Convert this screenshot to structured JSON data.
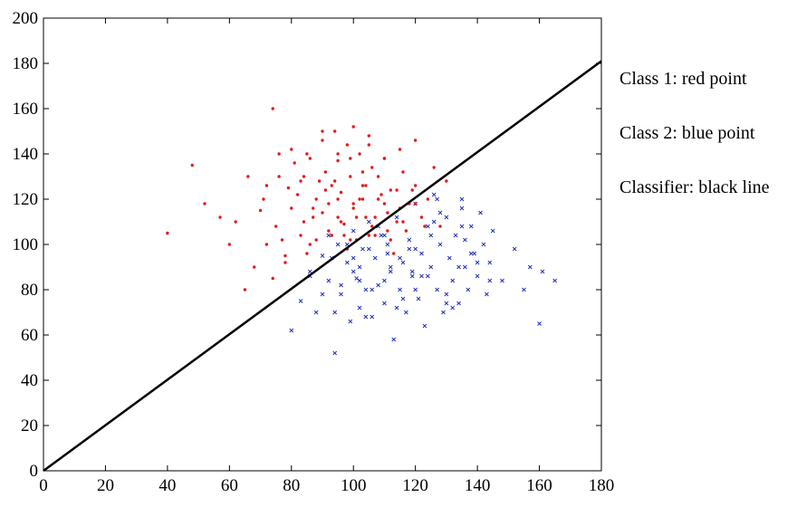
{
  "chart_data": {
    "type": "scatter",
    "xlim": [
      0,
      180
    ],
    "ylim": [
      0,
      200
    ],
    "x_ticks": [
      "0",
      "20",
      "40",
      "60",
      "80",
      "100",
      "120",
      "140",
      "160",
      "180"
    ],
    "y_ticks": [
      "0",
      "20",
      "40",
      "60",
      "80",
      "100",
      "120",
      "140",
      "160",
      "180",
      "200"
    ],
    "grid": false,
    "legend_position": "right",
    "annotations": [
      "Class 1: red point",
      "Class 2: blue point",
      "Classifier: black line"
    ],
    "series": [
      {
        "name": "Class 1",
        "color": "#e41a1c",
        "marker": "dot",
        "x": [
          40,
          48,
          52,
          57,
          60,
          65,
          70,
          74,
          76,
          79,
          80,
          83,
          84,
          86,
          88,
          90,
          91,
          92,
          93,
          94,
          95,
          96,
          97,
          98,
          99,
          100,
          101,
          102,
          103,
          104,
          105,
          106,
          108,
          110,
          112,
          114,
          116,
          118,
          120,
          122,
          124,
          126,
          128,
          130,
          72,
          75,
          78,
          82,
          85,
          87,
          89,
          92,
          95,
          98,
          101,
          104,
          107,
          110,
          113,
          116,
          119,
          68,
          72,
          77,
          81,
          86,
          90,
          94,
          97,
          100,
          103,
          106,
          109,
          112,
          115,
          62,
          66,
          71,
          76,
          80,
          84,
          88,
          93,
          96,
          99,
          102,
          105,
          108,
          111,
          114,
          117,
          120,
          123,
          74,
          78,
          83,
          87,
          91,
          95,
          99,
          103,
          107,
          111,
          85,
          90,
          95,
          100,
          105,
          110,
          115,
          120
        ],
        "y": [
          105,
          135,
          118,
          112,
          100,
          80,
          115,
          160,
          130,
          125,
          142,
          128,
          110,
          138,
          120,
          146,
          132,
          118,
          104,
          150,
          137,
          123,
          109,
          144,
          130,
          116,
          102,
          140,
          126,
          112,
          148,
          134,
          120,
          138,
          124,
          110,
          132,
          118,
          126,
          112,
          120,
          134,
          108,
          128,
          100,
          108,
          95,
          122,
          96,
          112,
          128,
          106,
          120,
          98,
          112,
          126,
          104,
          118,
          96,
          110,
          124,
          90,
          126,
          102,
          136,
          100,
          114,
          128,
          104,
          118,
          132,
          108,
          122,
          102,
          116,
          110,
          130,
          120,
          140,
          116,
          130,
          102,
          126,
          110,
          138,
          120,
          104,
          130,
          114,
          124,
          106,
          118,
          108,
          85,
          92,
          104,
          116,
          124,
          112,
          102,
          120,
          112,
          106,
          140,
          150,
          140,
          152,
          144,
          138,
          142,
          146
        ]
      },
      {
        "name": "Class 2",
        "color": "#2233bb",
        "marker": "x",
        "x": [
          80,
          83,
          86,
          88,
          90,
          92,
          94,
          95,
          96,
          98,
          99,
          100,
          101,
          102,
          103,
          104,
          105,
          106,
          107,
          108,
          109,
          110,
          111,
          112,
          113,
          114,
          115,
          116,
          117,
          118,
          119,
          120,
          121,
          122,
          123,
          124,
          125,
          126,
          127,
          128,
          129,
          130,
          131,
          132,
          133,
          134,
          135,
          136,
          137,
          138,
          139,
          140,
          141,
          142,
          143,
          144,
          145,
          148,
          152,
          155,
          157,
          160,
          161,
          165,
          92,
          96,
          100,
          104,
          108,
          112,
          116,
          120,
          124,
          128,
          132,
          136,
          140,
          144,
          86,
          90,
          94,
          98,
          102,
          106,
          110,
          114,
          118,
          122,
          126,
          130,
          134,
          138,
          100,
          105,
          110,
          115,
          120,
          125,
          130,
          135,
          93,
          102,
          111,
          119,
          127,
          135
        ],
        "y": [
          62,
          75,
          88,
          70,
          95,
          84,
          52,
          100,
          78,
          92,
          66,
          106,
          85,
          72,
          98,
          80,
          110,
          68,
          94,
          82,
          104,
          74,
          96,
          88,
          58,
          112,
          80,
          92,
          70,
          102,
          86,
          118,
          76,
          96,
          64,
          108,
          90,
          122,
          80,
          100,
          70,
          112,
          94,
          84,
          104,
          74,
          120,
          90,
          80,
          108,
          96,
          86,
          114,
          100,
          78,
          92,
          106,
          84,
          98,
          80,
          90,
          65,
          88,
          84,
          104,
          82,
          94,
          68,
          108,
          90,
          76,
          98,
          86,
          114,
          72,
          102,
          92,
          84,
          86,
          78,
          70,
          100,
          90,
          80,
          104,
          72,
          98,
          86,
          110,
          78,
          90,
          96,
          88,
          98,
          84,
          94,
          80,
          104,
          74,
          116,
          94,
          84,
          100,
          88,
          120,
          108
        ]
      }
    ],
    "classifier_line": {
      "name": "Classifier",
      "color": "#000000",
      "x": [
        0,
        180
      ],
      "y": [
        0,
        181
      ]
    }
  }
}
